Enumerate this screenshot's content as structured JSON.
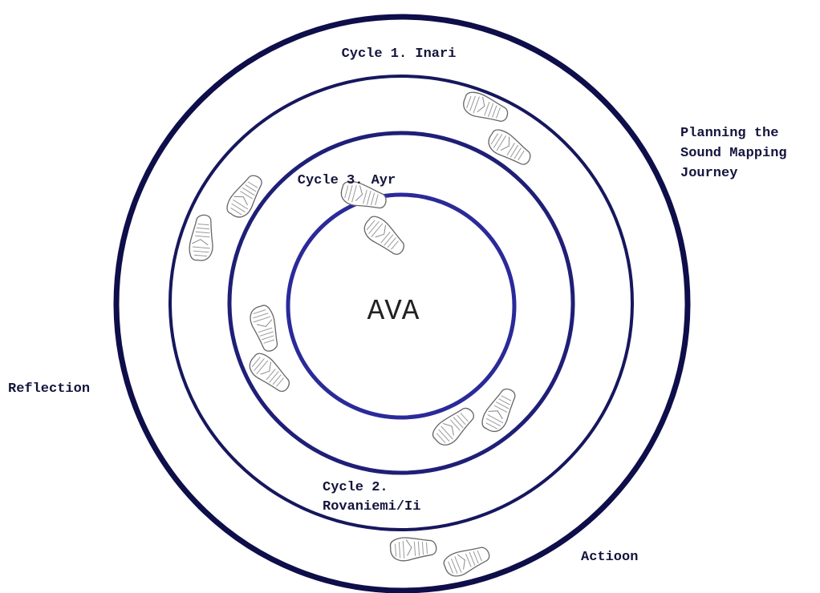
{
  "center": {
    "label": "AVA"
  },
  "cycles": [
    {
      "label": [
        "Cycle 1. Inari"
      ]
    },
    {
      "label": [
        "Cycle 2.",
        "Rovaniemi/Ii"
      ]
    },
    {
      "label": [
        "Cycle 3. Ayr"
      ]
    }
  ],
  "phases": [
    {
      "label": [
        "Planning the",
        "Sound Mapping",
        "Journey"
      ]
    },
    {
      "label": [
        "Actioon"
      ]
    },
    {
      "label": [
        "Reflection"
      ]
    }
  ]
}
